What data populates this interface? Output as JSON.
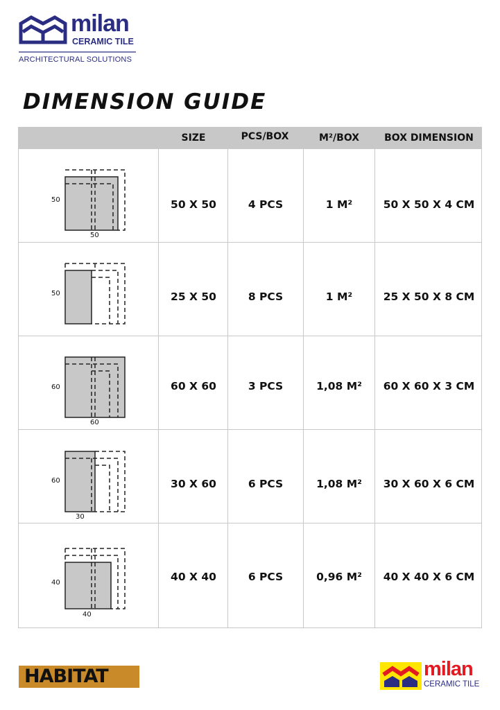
{
  "header": {
    "logo_word": "milan",
    "logo_sub": "CERAMIC TILE",
    "tagline": "ARCHITECTURAL SOLUTIONS",
    "brand_color": "#2b2d83"
  },
  "title": "DIMENSION GUIDE",
  "table": {
    "columns": [
      "",
      "SIZE",
      "PCS/BOX",
      "M²/BOX",
      "BOX DIMENSION"
    ],
    "rows": [
      {
        "dim_h": "50",
        "dim_w": "50",
        "size": "50 X 50",
        "pcs": "4 PCS",
        "m2": "1 M²",
        "box": "50 X 50 X 4 CM"
      },
      {
        "dim_h": "50",
        "dim_w": "",
        "size": "25 X 50",
        "pcs": "8 PCS",
        "m2": "1 M²",
        "box": "25 X 50 X 8 CM"
      },
      {
        "dim_h": "60",
        "dim_w": "60",
        "size": "60 X 60",
        "pcs": "3 PCS",
        "m2": "1,08 M²",
        "box": "60 X 60 X 3 CM"
      },
      {
        "dim_h": "60",
        "dim_w": "30",
        "size": "30 X 60",
        "pcs": "6 PCS",
        "m2": "1,08 M²",
        "box": "30 X 60 X 6 CM"
      },
      {
        "dim_h": "40",
        "dim_w": "40",
        "size": "40 X 40",
        "pcs": "6 PCS",
        "m2": "0,96 M²",
        "box": "40 X 40 X 6 CM"
      }
    ],
    "header_bg": "#c8c8c8",
    "tile_fill": "#c8c8c8"
  },
  "footer": {
    "left_logo": "HABITAT",
    "right_logo_word": "milan",
    "right_logo_sub": "CERAMIC TILE"
  }
}
